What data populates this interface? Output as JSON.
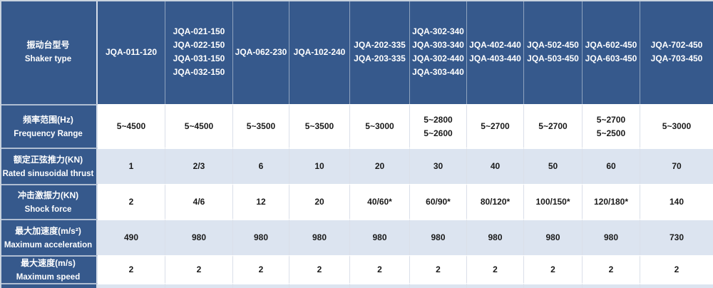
{
  "colors": {
    "header_bg": "#36598C",
    "row_alt_bg": "#DCE4F0",
    "row_bg": "#FFFFFF",
    "text_dark": "#1A1A1A",
    "text_light": "#FFFFFF"
  },
  "table": {
    "header": {
      "label_zh": "振动台型号",
      "label_en": "Shaker type",
      "models": [
        [
          "JQA-011-120"
        ],
        [
          "JQA-021-150",
          "JQA-022-150",
          "JQA-031-150",
          "JQA-032-150"
        ],
        [
          "JQA-062-230"
        ],
        [
          "JQA-102-240"
        ],
        [
          "JQA-202-335",
          "JQA-203-335"
        ],
        [
          "JQA-302-340",
          "JQA-303-340",
          "JQA-302-440",
          "JQA-303-440"
        ],
        [
          "JQA-402-440",
          "JQA-403-440"
        ],
        [
          "JQA-502-450",
          "JQA-503-450"
        ],
        [
          "JQA-602-450",
          "JQA-603-450"
        ],
        [
          "JQA-702-450",
          "JQA-703-450"
        ]
      ]
    },
    "rows": [
      {
        "label_zh": "频率范围(Hz)",
        "label_en": "Frequency Range",
        "values": [
          [
            "5~4500"
          ],
          [
            "5~4500"
          ],
          [
            "5~3500"
          ],
          [
            "5~3500"
          ],
          [
            "5~3000"
          ],
          [
            "5~2800",
            "5~2600"
          ],
          [
            "5~2700"
          ],
          [
            "5~2700"
          ],
          [
            "5~2700",
            "5~2500"
          ],
          [
            "5~3000"
          ]
        ]
      },
      {
        "label_zh": "额定正弦推力(KN)",
        "label_en": "Rated sinusoidal thrust",
        "values": [
          [
            "1"
          ],
          [
            "2/3"
          ],
          [
            "6"
          ],
          [
            "10"
          ],
          [
            "20"
          ],
          [
            "30"
          ],
          [
            "40"
          ],
          [
            "50"
          ],
          [
            "60"
          ],
          [
            "70"
          ]
        ]
      },
      {
        "label_zh": "冲击激振力(KN)",
        "label_en": "Shock force",
        "values": [
          [
            "2"
          ],
          [
            "4/6"
          ],
          [
            "12"
          ],
          [
            "20"
          ],
          [
            "40/60*"
          ],
          [
            "60/90*"
          ],
          [
            "80/120*"
          ],
          [
            "100/150*"
          ],
          [
            "120/180*"
          ],
          [
            "140"
          ]
        ]
      },
      {
        "label_zh": "最大加速度(m/s²)",
        "label_en": "Maximum acceleration",
        "values": [
          [
            "490"
          ],
          [
            "980"
          ],
          [
            "980"
          ],
          [
            "980"
          ],
          [
            "980"
          ],
          [
            "980"
          ],
          [
            "980"
          ],
          [
            "980"
          ],
          [
            "980"
          ],
          [
            "730"
          ]
        ]
      },
      {
        "label_zh": "最大速度(m/s)",
        "label_en": "Maximum speed",
        "values": [
          [
            "2"
          ],
          [
            "2"
          ],
          [
            "2"
          ],
          [
            "2"
          ],
          [
            "2"
          ],
          [
            "2"
          ],
          [
            "2"
          ],
          [
            "2"
          ],
          [
            "2"
          ],
          [
            "2"
          ]
        ]
      }
    ]
  }
}
